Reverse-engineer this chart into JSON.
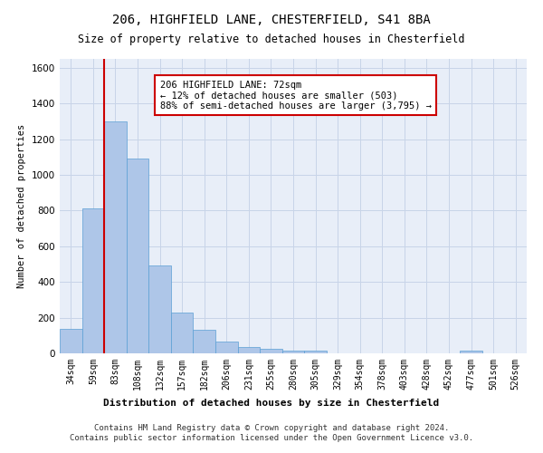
{
  "title1": "206, HIGHFIELD LANE, CHESTERFIELD, S41 8BA",
  "title2": "Size of property relative to detached houses in Chesterfield",
  "xlabel": "Distribution of detached houses by size in Chesterfield",
  "ylabel": "Number of detached properties",
  "categories": [
    "34sqm",
    "59sqm",
    "83sqm",
    "108sqm",
    "132sqm",
    "157sqm",
    "182sqm",
    "206sqm",
    "231sqm",
    "255sqm",
    "280sqm",
    "305sqm",
    "329sqm",
    "354sqm",
    "378sqm",
    "403sqm",
    "428sqm",
    "452sqm",
    "477sqm",
    "501sqm",
    "526sqm"
  ],
  "values": [
    135,
    810,
    1300,
    1090,
    490,
    230,
    130,
    65,
    38,
    25,
    15,
    15,
    0,
    0,
    0,
    0,
    0,
    0,
    15,
    0,
    0
  ],
  "bar_color": "#aec6e8",
  "bar_edge_color": "#5a9fd4",
  "vline_x": 1.5,
  "vline_color": "#cc0000",
  "annotation_text": "206 HIGHFIELD LANE: 72sqm\n← 12% of detached houses are smaller (503)\n88% of semi-detached houses are larger (3,795) →",
  "annotation_box_color": "#ffffff",
  "annotation_box_edge": "#cc0000",
  "ylim": [
    0,
    1650
  ],
  "yticks": [
    0,
    200,
    400,
    600,
    800,
    1000,
    1200,
    1400,
    1600
  ],
  "footer1": "Contains HM Land Registry data © Crown copyright and database right 2024.",
  "footer2": "Contains public sector information licensed under the Open Government Licence v3.0.",
  "bg_color": "#ffffff",
  "grid_color": "#c8d4e8",
  "ax_bg_color": "#e8eef8"
}
